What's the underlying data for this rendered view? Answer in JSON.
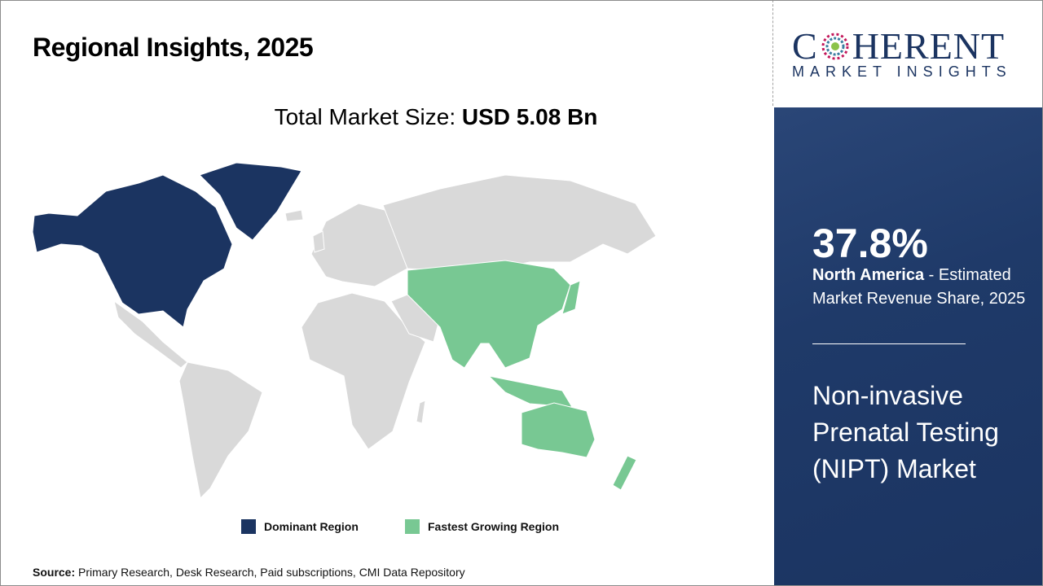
{
  "title": "Regional Insights, 2025",
  "total_market": {
    "label": "Total Market Size:",
    "value": "USD 5.08 Bn"
  },
  "logo": {
    "main_left": "C",
    "main_right": "HERENT",
    "sub": "MARKET INSIGHTS"
  },
  "highlight": {
    "percent": "37.8%",
    "region": "North America",
    "description": " - Estimated Market Revenue Share, 2025",
    "market_name": "Non-invasive Prenatal Testing (NIPT) Market"
  },
  "legend": {
    "dominant": {
      "label": "Dominant Region",
      "color": "#1b3461"
    },
    "fastest": {
      "label": "Fastest Growing Region",
      "color": "#78c893"
    }
  },
  "map": {
    "dominant_region": "North America",
    "fastest_growing_region": "Asia Pacific",
    "other_color": "#d9d9d9"
  },
  "source": {
    "label": "Source:",
    "text": " Primary Research, Desk Research, Paid subscriptions, CMI Data Repository"
  }
}
